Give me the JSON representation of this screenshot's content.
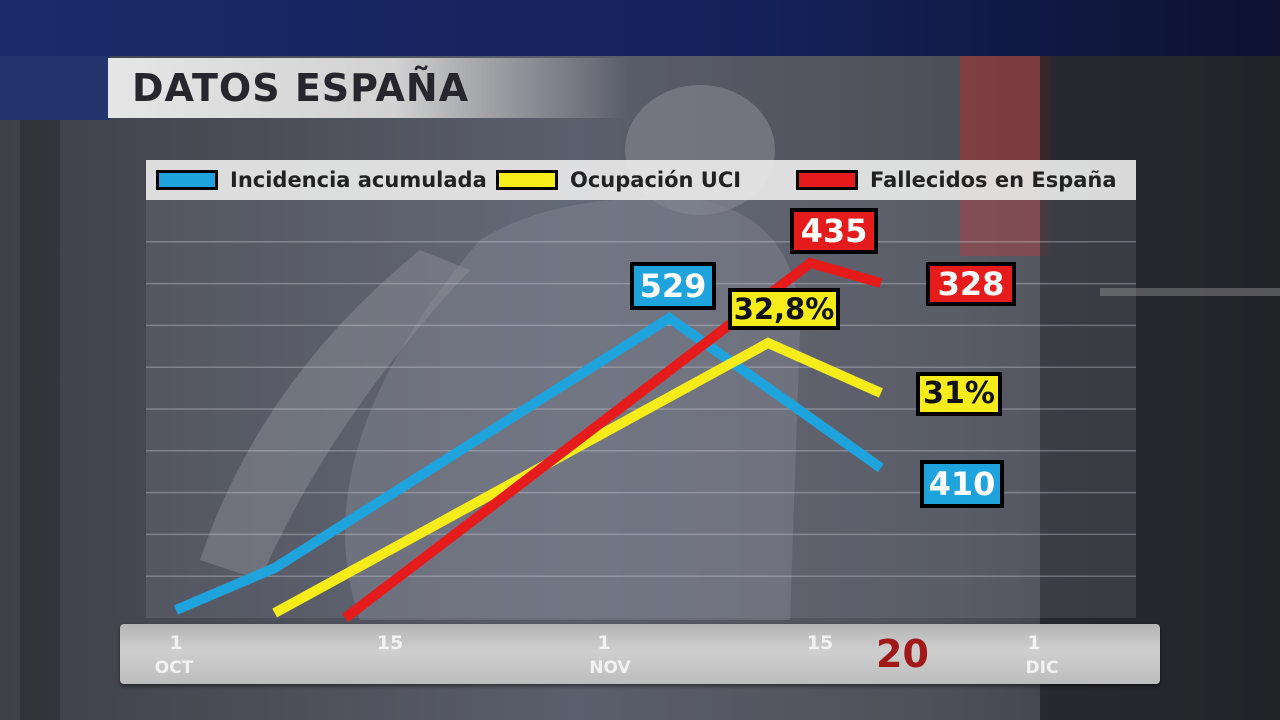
{
  "header": {
    "title": "DATOS ESPAÑA"
  },
  "legend": {
    "items": [
      {
        "label": "Incidencia acumulada",
        "color": "#1fa3dc"
      },
      {
        "label": "Ocupación UCI",
        "color": "#f5ec1a"
      },
      {
        "label": "Fallecidos en España",
        "color": "#e61c1c"
      }
    ]
  },
  "axis": {
    "ticks": [
      "1",
      "15",
      "1",
      "15",
      "1"
    ],
    "months": [
      "OCT",
      "NOV",
      "DIC"
    ],
    "year": "20"
  },
  "callouts": {
    "incidencia_peak": "529",
    "incidencia_end": "410",
    "uci_peak": "32,8%",
    "uci_end": "31%",
    "fallecidos_peak": "435",
    "fallecidos_end": "328"
  },
  "chart_data": {
    "type": "line",
    "title": "DATOS ESPAÑA",
    "xlabel": "",
    "ylabel": "",
    "grid": true,
    "legend_position": "top",
    "series": [
      {
        "name": "Incidencia acumulada",
        "color": "#1fa3dc",
        "points": [
          [
            "2020-10-01",
            8
          ],
          [
            "2020-10-08",
            50
          ],
          [
            "2020-11-05",
            300
          ],
          [
            "2020-11-20",
            150
          ]
        ],
        "labeled_values": {
          "peak": 529,
          "end": 410
        }
      },
      {
        "name": "Ocupación UCI",
        "color": "#f5ec1a",
        "points": [
          [
            "2020-10-08",
            5
          ],
          [
            "2020-11-12",
            275
          ],
          [
            "2020-11-20",
            225
          ]
        ],
        "labeled_values": {
          "peak": "32,8%",
          "end": "31%"
        }
      },
      {
        "name": "Fallecidos en España",
        "color": "#e61c1c",
        "points": [
          [
            "2020-10-13",
            0
          ],
          [
            "2020-11-15",
            355
          ],
          [
            "2020-11-20",
            335
          ]
        ],
        "labeled_values": {
          "peak": 435,
          "end": 328
        }
      }
    ]
  }
}
